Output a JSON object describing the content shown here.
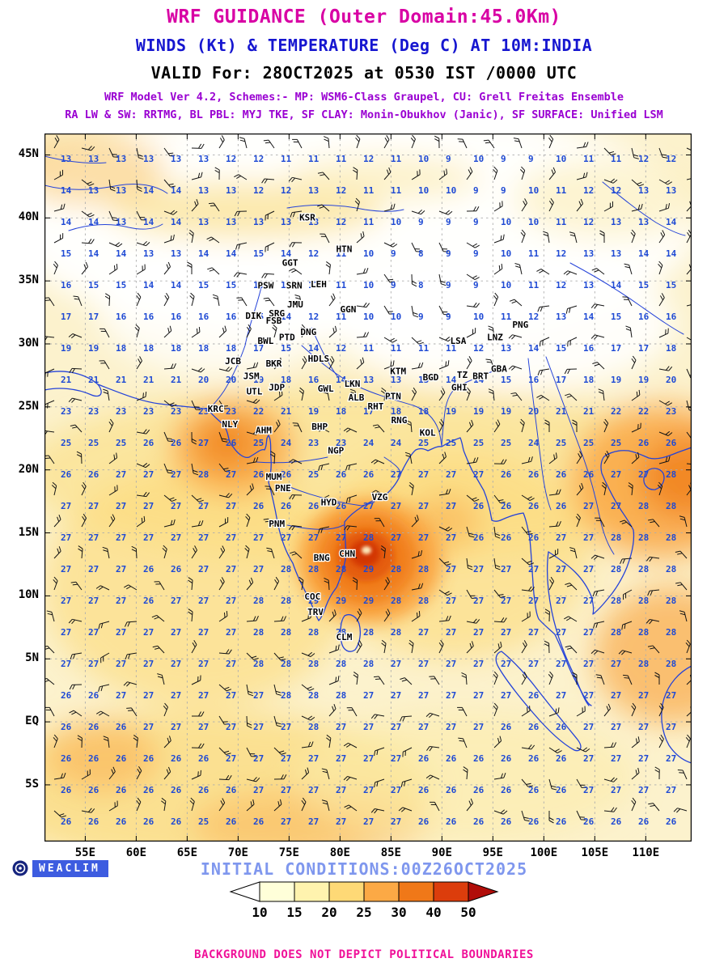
{
  "header": {
    "title1": "WRF GUIDANCE (Outer Domain:45.0Km)",
    "title2": "WINDS (Kt) & TEMPERATURE (Deg C) AT 10M:INDIA",
    "title3": "VALID For: 28OCT2025 at 0530 IST /0000 UTC",
    "scheme_line1": "WRF Model Ver 4.2, Schemes:- MP: WSM6-Class Graupel, CU: Grell Freitas Ensemble",
    "scheme_line2": "RA LW & SW: RRTMG, BL PBL: MYJ TKE, SF CLAY: Monin-Obukhov (Janic), SF SURFACE: Unified LSM"
  },
  "footer": {
    "logo_text": "WEACLIM",
    "initial_conditions": "INITIAL CONDITIONS:00Z26OCT2025",
    "disclaimer": "BACKGROUND DOES NOT DEPICT POLITICAL BOUNDARIES"
  },
  "chart_data": {
    "type": "heatmap",
    "title": "WRF GUIDANCE (Outer Domain:45.0Km)",
    "subtitle": "WINDS (Kt) & TEMPERATURE (Deg C) AT 10M:INDIA",
    "valid_time": "VALID For: 28OCT2025 at 0530 IST /0000 UTC",
    "lon_range": [
      51,
      114.5
    ],
    "lat_range": [
      -9.5,
      46.7
    ],
    "x_ticks": [
      {
        "v": 55,
        "label": "55E"
      },
      {
        "v": 60,
        "label": "60E"
      },
      {
        "v": 65,
        "label": "65E"
      },
      {
        "v": 70,
        "label": "70E"
      },
      {
        "v": 75,
        "label": "75E"
      },
      {
        "v": 80,
        "label": "80E"
      },
      {
        "v": 85,
        "label": "85E"
      },
      {
        "v": 90,
        "label": "90E"
      },
      {
        "v": 95,
        "label": "95E"
      },
      {
        "v": 100,
        "label": "100E"
      },
      {
        "v": 105,
        "label": "105E"
      },
      {
        "v": 110,
        "label": "110E"
      }
    ],
    "y_ticks": [
      {
        "v": 45,
        "label": "45N"
      },
      {
        "v": 40,
        "label": "40N"
      },
      {
        "v": 35,
        "label": "35N"
      },
      {
        "v": 30,
        "label": "30N"
      },
      {
        "v": 25,
        "label": "25N"
      },
      {
        "v": 20,
        "label": "20N"
      },
      {
        "v": 15,
        "label": "15N"
      },
      {
        "v": 10,
        "label": "10N"
      },
      {
        "v": 5,
        "label": "5N"
      },
      {
        "v": 0,
        "label": "EQ"
      },
      {
        "v": -5,
        "label": "5S"
      }
    ],
    "colorbar": {
      "levels": [
        10,
        15,
        20,
        25,
        30,
        40,
        50
      ],
      "colors": [
        "#ffffff",
        "#ffffd9",
        "#fff3ae",
        "#fed976",
        "#fca945",
        "#f07818",
        "#dc3d0c",
        "#b10d09"
      ]
    },
    "wind_barbs": {
      "cols": 24,
      "rows": 22
    },
    "temp_grid": {
      "lon_start": 51,
      "lon_end": 114.5,
      "lat_start": 46.7,
      "lat_end": -9.5,
      "values": [
        [
          13,
          12,
          13,
          12,
          11,
          10,
          12,
          9,
          10,
          8,
          10,
          11,
          12
        ],
        [
          14,
          13,
          14,
          13,
          12,
          13,
          11,
          10,
          9,
          10,
          12,
          13,
          14
        ],
        [
          15,
          14,
          13,
          14,
          15,
          12,
          10,
          8,
          9,
          11,
          13,
          14,
          15
        ],
        [
          18,
          17,
          16,
          17,
          15,
          12,
          10,
          9,
          10,
          12,
          14,
          16,
          17
        ],
        [
          22,
          21,
          22,
          21,
          20,
          16,
          13,
          14,
          15,
          17,
          19,
          20,
          21
        ],
        [
          26,
          26,
          27,
          28,
          26,
          25,
          26,
          27,
          27,
          26,
          26,
          27,
          28
        ],
        [
          27,
          27,
          27,
          27,
          26,
          26,
          27,
          27,
          26,
          26,
          27,
          28,
          28
        ],
        [
          27,
          27,
          26,
          27,
          28,
          29,
          29,
          28,
          27,
          27,
          27,
          28,
          28
        ],
        [
          27,
          27,
          27,
          27,
          28,
          28,
          28,
          27,
          27,
          27,
          27,
          28,
          28
        ],
        [
          26,
          26,
          27,
          27,
          27,
          28,
          27,
          27,
          27,
          26,
          27,
          27,
          27
        ],
        [
          26,
          26,
          26,
          26,
          27,
          27,
          27,
          26,
          26,
          26,
          27,
          27,
          27
        ],
        [
          26,
          26,
          26,
          25,
          26,
          27,
          27,
          26,
          26,
          26,
          26,
          26,
          26
        ]
      ]
    },
    "stations": [
      {
        "name": "KSR",
        "lon": 76.8,
        "lat": 39.8
      },
      {
        "name": "HTN",
        "lon": 80.4,
        "lat": 37.3
      },
      {
        "name": "GGT",
        "lon": 75.1,
        "lat": 36.2
      },
      {
        "name": "PSW",
        "lon": 72.7,
        "lat": 34.4
      },
      {
        "name": "SRN",
        "lon": 75.5,
        "lat": 34.4
      },
      {
        "name": "LEH",
        "lon": 77.9,
        "lat": 34.5
      },
      {
        "name": "JMU",
        "lon": 75.6,
        "lat": 32.9
      },
      {
        "name": "DIK",
        "lon": 71.5,
        "lat": 32.0
      },
      {
        "name": "SRG",
        "lon": 73.8,
        "lat": 32.2
      },
      {
        "name": "FSB",
        "lon": 73.5,
        "lat": 31.6
      },
      {
        "name": "GGN",
        "lon": 80.8,
        "lat": 32.5
      },
      {
        "name": "PNG",
        "lon": 97.7,
        "lat": 31.3
      },
      {
        "name": "BWL",
        "lon": 72.7,
        "lat": 30.0
      },
      {
        "name": "PTD",
        "lon": 74.8,
        "lat": 30.3
      },
      {
        "name": "DNG",
        "lon": 76.9,
        "lat": 30.7
      },
      {
        "name": "LSA",
        "lon": 91.6,
        "lat": 30.0
      },
      {
        "name": "LNZ",
        "lon": 95.2,
        "lat": 30.3
      },
      {
        "name": "JCB",
        "lon": 69.5,
        "lat": 28.4
      },
      {
        "name": "BKR",
        "lon": 73.5,
        "lat": 28.2
      },
      {
        "name": "HDLS",
        "lon": 77.9,
        "lat": 28.6
      },
      {
        "name": "JSM",
        "lon": 71.3,
        "lat": 27.2
      },
      {
        "name": "UTL",
        "lon": 71.6,
        "lat": 26.0
      },
      {
        "name": "JDP",
        "lon": 73.8,
        "lat": 26.3
      },
      {
        "name": "GWL",
        "lon": 78.6,
        "lat": 26.2
      },
      {
        "name": "LKN",
        "lon": 81.2,
        "lat": 26.6
      },
      {
        "name": "KTM",
        "lon": 85.7,
        "lat": 27.6
      },
      {
        "name": "BGD",
        "lon": 88.9,
        "lat": 27.1
      },
      {
        "name": "TZ",
        "lon": 92.0,
        "lat": 27.3
      },
      {
        "name": "BRT",
        "lon": 93.8,
        "lat": 27.2
      },
      {
        "name": "GBA",
        "lon": 95.6,
        "lat": 27.8
      },
      {
        "name": "GHI",
        "lon": 91.7,
        "lat": 26.3
      },
      {
        "name": "ALB",
        "lon": 81.6,
        "lat": 25.5
      },
      {
        "name": "PTN",
        "lon": 85.2,
        "lat": 25.6
      },
      {
        "name": "RHT",
        "lon": 83.5,
        "lat": 24.8
      },
      {
        "name": "KRC",
        "lon": 67.8,
        "lat": 24.6
      },
      {
        "name": "NLY",
        "lon": 69.2,
        "lat": 23.4
      },
      {
        "name": "AHM",
        "lon": 72.5,
        "lat": 22.9
      },
      {
        "name": "BHP",
        "lon": 78.0,
        "lat": 23.2
      },
      {
        "name": "RNG",
        "lon": 85.8,
        "lat": 23.7
      },
      {
        "name": "KOL",
        "lon": 88.6,
        "lat": 22.7
      },
      {
        "name": "NGP",
        "lon": 79.6,
        "lat": 21.3
      },
      {
        "name": "MUM",
        "lon": 73.5,
        "lat": 19.2
      },
      {
        "name": "PNE",
        "lon": 74.4,
        "lat": 18.3
      },
      {
        "name": "HYD",
        "lon": 78.9,
        "lat": 17.2
      },
      {
        "name": "VZG",
        "lon": 83.9,
        "lat": 17.6
      },
      {
        "name": "PNM",
        "lon": 73.8,
        "lat": 15.5
      },
      {
        "name": "BNG",
        "lon": 78.2,
        "lat": 12.8
      },
      {
        "name": "CHN",
        "lon": 80.7,
        "lat": 13.1
      },
      {
        "name": "COC",
        "lon": 77.3,
        "lat": 9.7
      },
      {
        "name": "TRV",
        "lon": 77.6,
        "lat": 8.5
      },
      {
        "name": "CLM",
        "lon": 80.4,
        "lat": 6.5
      }
    ]
  }
}
